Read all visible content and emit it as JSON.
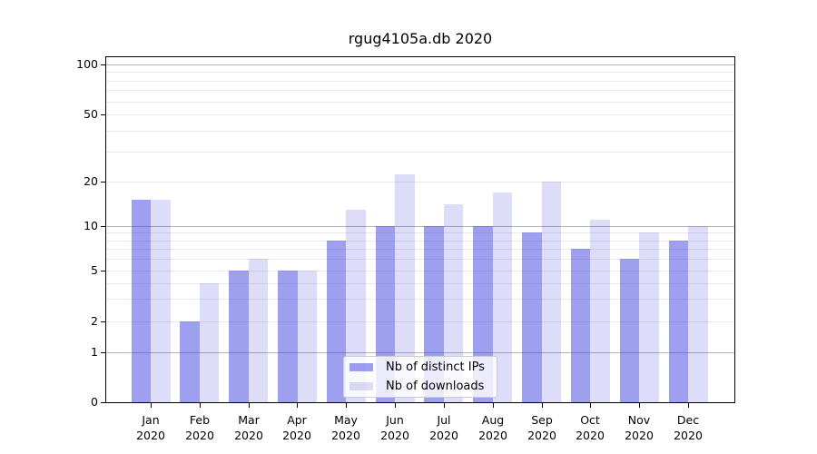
{
  "chart_data": {
    "type": "bar",
    "title": "rgug4105a.db 2020",
    "categories": [
      "Jan",
      "Feb",
      "Mar",
      "Apr",
      "May",
      "Jun",
      "Jul",
      "Aug",
      "Sep",
      "Oct",
      "Nov",
      "Dec"
    ],
    "year_label": "2020",
    "series": [
      {
        "name": "Nb of distinct IPs",
        "color": "rgba(64,64,224,0.5)",
        "values": [
          15,
          2,
          5,
          5,
          8,
          10,
          10,
          10,
          9,
          7,
          6,
          8
        ]
      },
      {
        "name": "Nb of downloads",
        "color": "rgba(64,64,224,0.18)",
        "values": [
          15,
          4,
          6,
          5,
          13,
          22,
          14,
          17,
          20,
          11,
          9,
          10
        ]
      }
    ],
    "xlabel": "",
    "ylabel": "",
    "yaxis": {
      "scale": "log-with-zero",
      "ticks": [
        0,
        1,
        2,
        5,
        10,
        20,
        50,
        100
      ],
      "major_gridlines": [
        1,
        10,
        100
      ],
      "minor_gridlines": [
        2,
        3,
        4,
        5,
        6,
        7,
        8,
        9,
        20,
        30,
        40,
        50,
        60,
        70,
        80,
        90
      ],
      "ylim": [
        0,
        112
      ]
    },
    "legend": {
      "position": "lower-center",
      "entries": [
        "Nb of distinct IPs",
        "Nb of downloads"
      ]
    },
    "colors": {
      "bar_distinct_ips": "rgba(64,64,224,0.5)",
      "bar_downloads": "rgba(64,64,224,0.18)",
      "major_grid": "#b3b3b3",
      "minor_grid": "#e9e9e9",
      "spine": "#000000",
      "text": "#000000"
    },
    "grid": "on"
  }
}
